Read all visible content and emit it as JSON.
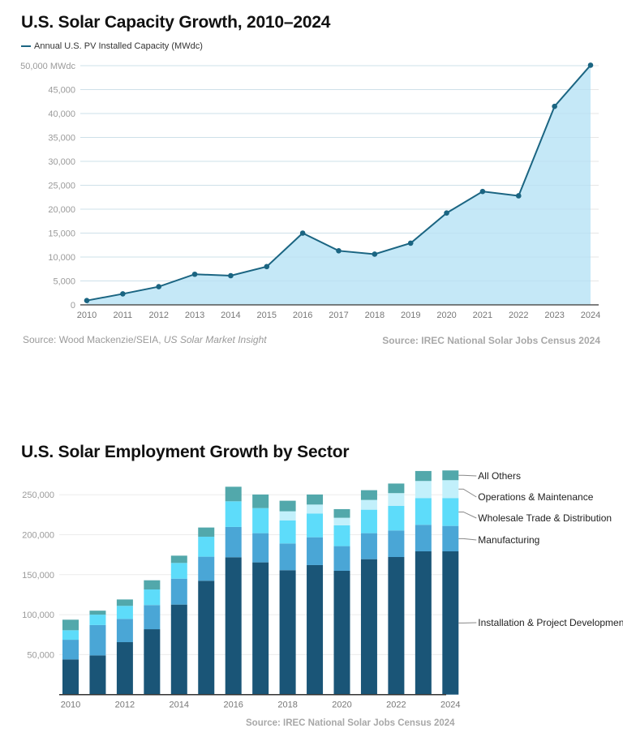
{
  "page": {
    "chart1_title": "U.S. Solar Capacity Growth, 2010–2024",
    "chart2_title": "U.S. Solar Employment Growth by Sector",
    "source1_prefix": "Source: Wood Mackenzie/SEIA, ",
    "source1_italic": "US Solar Market Insight",
    "source2": "Source: IREC National Solar Jobs Census 2024",
    "source3": "Source: IREC National Solar Jobs Census 2024"
  },
  "chart_data": [
    {
      "type": "area",
      "title": "U.S. Solar Capacity Growth, 2010–2024",
      "legend": [
        "Annual U.S. PV Installed Capacity (MWdc)"
      ],
      "legend_position": "top-left",
      "xlabel": "",
      "ylabel": "",
      "x": [
        "2010",
        "2011",
        "2012",
        "2013",
        "2014",
        "2015",
        "2016",
        "2017",
        "2018",
        "2019",
        "2020",
        "2021",
        "2022",
        "2023",
        "2024"
      ],
      "series": [
        {
          "name": "Annual U.S. PV Installed Capacity (MWdc)",
          "values": [
            900,
            2300,
            3800,
            6400,
            6100,
            8000,
            15000,
            11300,
            10600,
            12900,
            19200,
            23700,
            22800,
            41500,
            50100
          ],
          "color": "#1b6582",
          "fill": "#c5e8f7"
        }
      ],
      "ylim": [
        0,
        50000
      ],
      "yticks": [
        0,
        5000,
        10000,
        15000,
        20000,
        25000,
        30000,
        35000,
        40000,
        45000,
        50000
      ],
      "ytick_labels": [
        "0",
        "5,000",
        "10,000",
        "15,000",
        "20,000",
        "25,000",
        "30,000",
        "35,000",
        "40,000",
        "45,000",
        "50,000 MWdc"
      ],
      "grid": true
    },
    {
      "type": "bar",
      "stacked": true,
      "title": "U.S. Solar Employment Growth by Sector",
      "categories": [
        "2010",
        "2011",
        "2012",
        "2013",
        "2014",
        "2015",
        "2016",
        "2017",
        "2018",
        "2019",
        "2020",
        "2021",
        "2022",
        "2023",
        "2024"
      ],
      "xtick_labels": [
        "2010",
        "2012",
        "2014",
        "2016",
        "2018",
        "2020",
        "2022",
        "2024"
      ],
      "series": [
        {
          "name": "Installation & Project Development",
          "color": "#1a5577",
          "values": [
            44000,
            49000,
            65600,
            81800,
            112600,
            142400,
            171800,
            165400,
            155600,
            162000,
            154900,
            169400,
            172100,
            179200,
            179200
          ]
        },
        {
          "name": "Manufacturing",
          "color": "#4aa6d6",
          "values": [
            24600,
            38000,
            29100,
            30200,
            32400,
            30100,
            37900,
            36500,
            33400,
            34800,
            30800,
            32500,
            33200,
            33200,
            31800
          ]
        },
        {
          "name": "Wholesale Trade & Distribution",
          "color": "#5ddcfa",
          "values": [
            11900,
            13000,
            16300,
            19500,
            19700,
            25000,
            32100,
            31400,
            29000,
            29800,
            26000,
            29400,
            30700,
            33500,
            34900
          ]
        },
        {
          "name": "Operations & Maintenance",
          "color": "#c2f0fb",
          "values": [
            0,
            0,
            0,
            0,
            0,
            0,
            0,
            0,
            11300,
            11100,
            9500,
            12200,
            16000,
            21300,
            22300
          ]
        },
        {
          "name": "All Others",
          "color": "#52a8ab",
          "values": [
            13200,
            5000,
            8000,
            11500,
            9100,
            11500,
            18200,
            17000,
            13200,
            12600,
            10800,
            12200,
            12000,
            12500,
            12200
          ]
        }
      ],
      "ylim": [
        0,
        280000
      ],
      "yticks": [
        50000,
        100000,
        150000,
        200000,
        250000
      ],
      "ytick_labels": [
        "50,000",
        "100,000",
        "150,000",
        "200,000",
        "250,000"
      ],
      "legend_position": "right (direct labels)",
      "grid": true
    }
  ]
}
